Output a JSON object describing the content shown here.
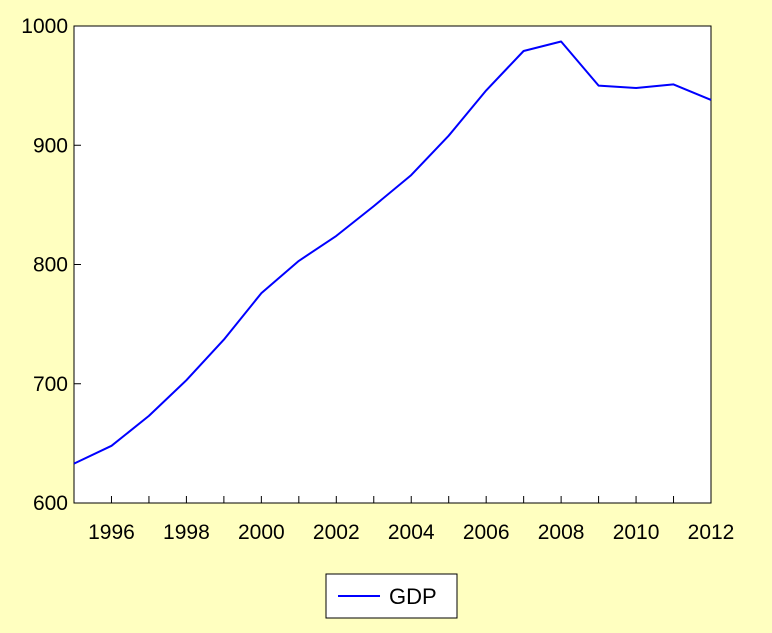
{
  "chart_data": {
    "type": "line",
    "title": "",
    "xlabel": "",
    "ylabel": "",
    "x": [
      1995,
      1996,
      1997,
      1998,
      1999,
      2000,
      2001,
      2002,
      2003,
      2004,
      2005,
      2006,
      2007,
      2008,
      2009,
      2010,
      2011,
      2012
    ],
    "series": [
      {
        "name": "GDP",
        "color": "#0000FF",
        "values": [
          633,
          648,
          673,
          703,
          737,
          776,
          803,
          824,
          849,
          875,
          908,
          946,
          979,
          987,
          950,
          948,
          951,
          938
        ]
      }
    ],
    "xlim": [
      1995,
      2012
    ],
    "ylim": [
      600,
      1000
    ],
    "x_ticks": [
      "1996",
      "1998",
      "2000",
      "2002",
      "2004",
      "2006",
      "2008",
      "2010",
      "2012"
    ],
    "y_ticks": [
      "600",
      "700",
      "800",
      "900",
      "1000"
    ],
    "grid": false,
    "legend_position": "bottom-center",
    "background_color": "#FFFFC0",
    "plot_background_color": "#FFFFFF"
  }
}
